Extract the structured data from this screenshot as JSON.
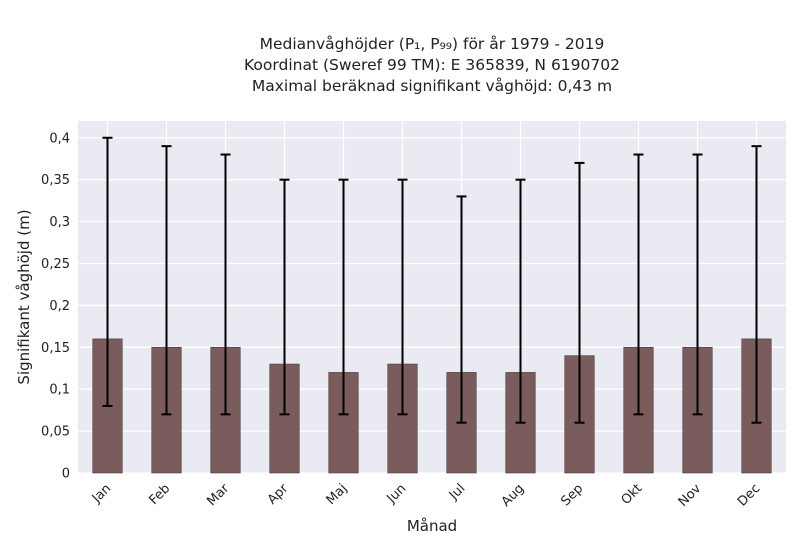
{
  "chart_data": {
    "type": "bar",
    "title_lines": [
      "Medianvåghöjder (P₁, P₉₉) för år 1979 - 2019",
      "Koordinat (Sweref 99 TM): E 365839, N 6190702",
      "Maximal beräknad signifikant våghöjd: 0,43 m"
    ],
    "xlabel": "Månad",
    "ylabel": "Signifikant våghöjd (m)",
    "categories": [
      "Jan",
      "Feb",
      "Mar",
      "Apr",
      "Maj",
      "Jun",
      "Jul",
      "Aug",
      "Sep",
      "Okt",
      "Nov",
      "Dec"
    ],
    "values": [
      0.16,
      0.15,
      0.15,
      0.13,
      0.12,
      0.13,
      0.12,
      0.12,
      0.14,
      0.15,
      0.15,
      0.16
    ],
    "p1": [
      0.08,
      0.07,
      0.07,
      0.07,
      0.07,
      0.07,
      0.06,
      0.06,
      0.06,
      0.07,
      0.07,
      0.06
    ],
    "p99": [
      0.4,
      0.39,
      0.38,
      0.35,
      0.35,
      0.35,
      0.33,
      0.35,
      0.37,
      0.38,
      0.38,
      0.39
    ],
    "ylim": [
      0,
      0.42
    ],
    "yticks": [
      0,
      0.05,
      0.1,
      0.15,
      0.2,
      0.25,
      0.3,
      0.35,
      0.4
    ],
    "ytick_labels": [
      "0",
      "0,05",
      "0,1",
      "0,15",
      "0,2",
      "0,25",
      "0,3",
      "0,35",
      "0,4"
    ],
    "grid": true,
    "colors": {
      "bar": "#7a5c5c",
      "plot_bg": "#eaeaf2",
      "grid": "#ffffff",
      "error": "#000000"
    }
  }
}
